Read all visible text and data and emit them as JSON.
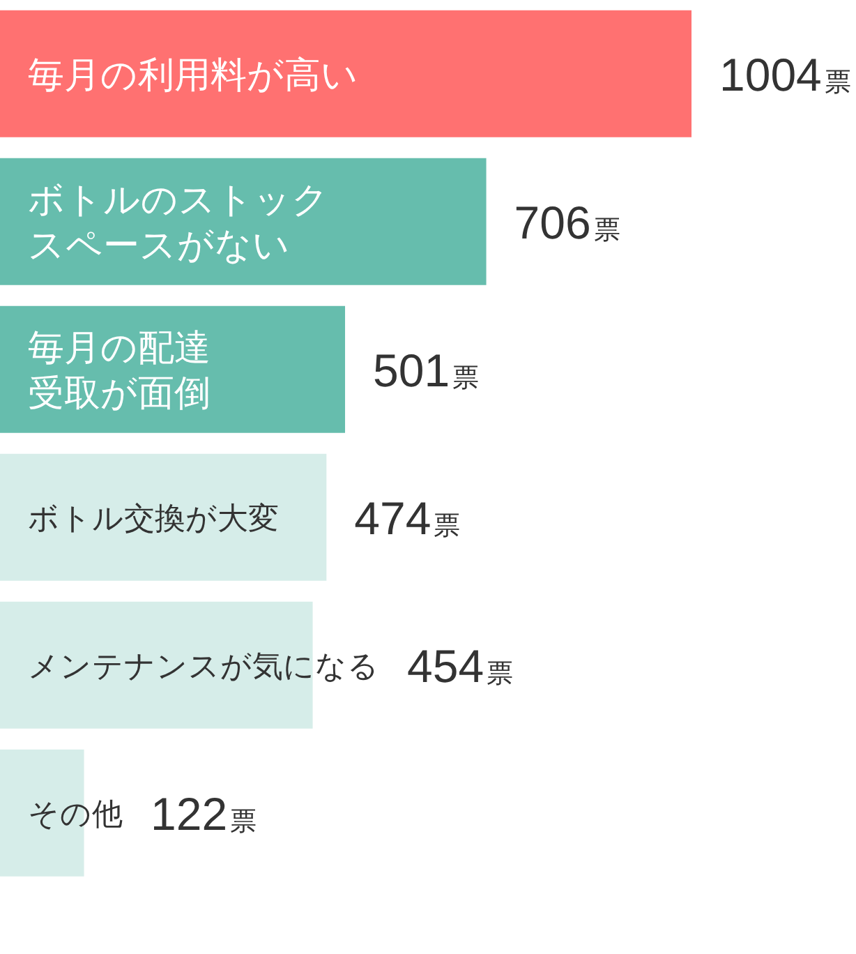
{
  "chart_data": {
    "type": "bar",
    "orientation": "horizontal",
    "categories": [
      "毎月の利用料が高い",
      "ボトルのストックスペースがない",
      "毎月の配達受取が面倒",
      "ボトル交換が大変",
      "メンテナンスが気になる",
      "その他"
    ],
    "values": [
      1004,
      706,
      501,
      474,
      454,
      122
    ],
    "colors": [
      "#ff7171",
      "#66bdad",
      "#66bdad",
      "#d6ede9",
      "#d6ede9",
      "#d6ede9"
    ],
    "value_labels": [
      "1004票",
      "706票",
      "501票",
      "474票",
      "454票",
      "122票"
    ]
  }
}
